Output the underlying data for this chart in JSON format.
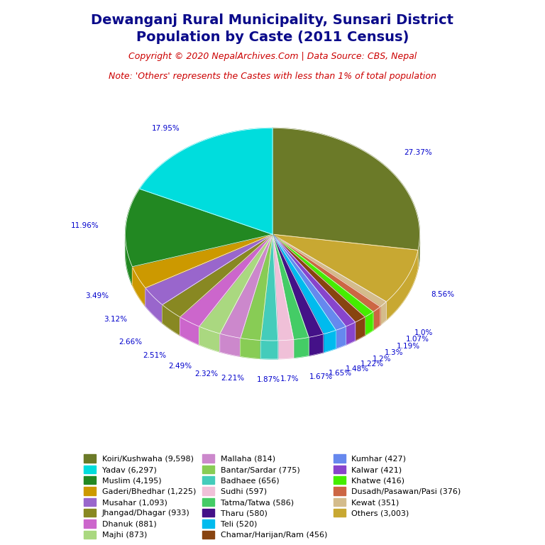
{
  "title": "Dewanganj Rural Municipality, Sunsari District\nPopulation by Caste (2011 Census)",
  "copyright": "Copyright © 2020 NepalArchives.Com | Data Source: CBS, Nepal",
  "note": "Note: 'Others' represents the Castes with less than 1% of total population",
  "slices": [
    {
      "label": "Koiri/Kushwaha",
      "value": 9598,
      "pct": 27.37,
      "color": "#6b7a28"
    },
    {
      "label": "Others",
      "value": 3003,
      "pct": 8.56,
      "color": "#c8a832"
    },
    {
      "label": "Kewat",
      "value": 351,
      "pct": 1.0,
      "color": "#d4bc8c"
    },
    {
      "label": "Dusadh/Pasawan/Pasi",
      "value": 376,
      "pct": 1.07,
      "color": "#cc6644"
    },
    {
      "label": "Khatwe",
      "value": 416,
      "pct": 1.19,
      "color": "#44ee00"
    },
    {
      "label": "Chamar/Harijan/Ram",
      "value": 456,
      "pct": 1.3,
      "color": "#884410"
    },
    {
      "label": "Kalwar",
      "value": 421,
      "pct": 1.2,
      "color": "#8844cc"
    },
    {
      "label": "Kumhar",
      "value": 427,
      "pct": 1.22,
      "color": "#6688ee"
    },
    {
      "label": "Teli",
      "value": 520,
      "pct": 1.48,
      "color": "#00bbee"
    },
    {
      "label": "Tharu",
      "value": 580,
      "pct": 1.65,
      "color": "#441188"
    },
    {
      "label": "Tatma/Tatwa",
      "value": 586,
      "pct": 1.67,
      "color": "#44cc66"
    },
    {
      "label": "Sudhi",
      "value": 597,
      "pct": 1.7,
      "color": "#f0c0d8"
    },
    {
      "label": "Badhaee",
      "value": 656,
      "pct": 1.87,
      "color": "#44ccbb"
    },
    {
      "label": "Bantar/Sardar",
      "value": 775,
      "pct": 2.21,
      "color": "#88cc55"
    },
    {
      "label": "Mallaha",
      "value": 814,
      "pct": 2.32,
      "color": "#cc88cc"
    },
    {
      "label": "Majhi",
      "value": 873,
      "pct": 2.49,
      "color": "#aad880"
    },
    {
      "label": "Dhanuk",
      "value": 881,
      "pct": 2.51,
      "color": "#cc66cc"
    },
    {
      "label": "Jhangad/Dhagar",
      "value": 933,
      "pct": 2.66,
      "color": "#888822"
    },
    {
      "label": "Musahar",
      "value": 1093,
      "pct": 3.12,
      "color": "#9966cc"
    },
    {
      "label": "Gaderi/Bhedhar",
      "value": 1225,
      "pct": 3.49,
      "color": "#cc9900"
    },
    {
      "label": "Muslim",
      "value": 4195,
      "pct": 11.96,
      "color": "#228822"
    },
    {
      "label": "Yadav",
      "value": 6297,
      "pct": 17.95,
      "color": "#00dddd"
    }
  ],
  "legend_order": [
    [
      "Koiri/Kushwaha",
      "Yadav",
      "Muslim"
    ],
    [
      "Gaderi/Bhedhar",
      "Musahar",
      "Jhangad/Dhagar"
    ],
    [
      "Dhanuk",
      "Majhi",
      "Mallaha"
    ],
    [
      "Bantar/Sardar",
      "Badhaee",
      "Sudhi"
    ],
    [
      "Tatma/Tatwa",
      "Tharu",
      "Teli"
    ],
    [
      "Chamar/Harijan/Ram",
      "Kumhar",
      "Kalwar"
    ],
    [
      "Khatwe",
      "Dusadh/Pasawan/Pasi",
      "Kewat"
    ],
    [
      "Others",
      "",
      ""
    ]
  ],
  "title_color": "#0a0a8a",
  "copyright_color": "#cc0000",
  "note_color": "#cc0000",
  "label_color": "#0000cc",
  "background_color": "#ffffff"
}
